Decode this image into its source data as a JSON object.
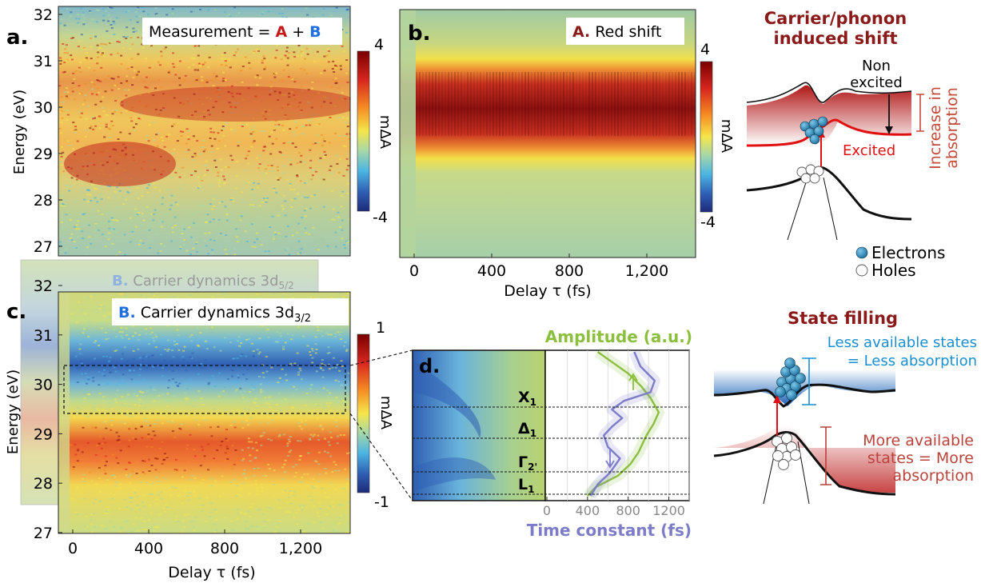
{
  "colors": {
    "measurement_a": "#c41a1a",
    "measurement_b": "#1f6fe0",
    "header_red": "#8b1a1a",
    "amplitude_green": "#8cbf3f",
    "time_constant_purple": "#7c7cc9",
    "less_blue": "#1a8fd0",
    "more_red": "#b9423a",
    "excited_red": "#e01010"
  },
  "panel_a": {
    "letter": "a.",
    "label_prefix": "Measurement = ",
    "label_a": "A",
    "label_plus": " + ",
    "label_b": "B",
    "ylabel": "Energy (eV)",
    "yticks": [
      "32",
      "31",
      "30",
      "29",
      "28",
      "27"
    ],
    "cbar_max": "4",
    "cbar_min": "-4",
    "cbar_label": "mΔA"
  },
  "panel_b": {
    "letter": "b.",
    "label_letter": "A.",
    "label_text": " Red shift",
    "xlabel": "Delay τ (fs)",
    "xticks": [
      "0",
      "400",
      "800",
      "1,200"
    ],
    "cbar_max": "4",
    "cbar_min": "-4",
    "cbar_label": "mΔA"
  },
  "panel_c": {
    "letter": "c.",
    "back_label_letter": "B.",
    "back_label_text": " Carrier dynamics 3d",
    "back_label_sub": "5/2",
    "label_letter": "B.",
    "label_text": " Carrier dynamics 3d",
    "label_sub": "3/2",
    "ylabel": "Energy (eV)",
    "yticks": [
      "32",
      "31",
      "30",
      "29",
      "28",
      "27"
    ],
    "xlabel": "Delay τ (fs)",
    "xticks": [
      "0",
      "400",
      "800",
      "1,200"
    ],
    "cbar_max": "1",
    "cbar_min": "-1",
    "cbar_label": "mΔA"
  },
  "panel_d": {
    "letter": "d.",
    "amplitude_label": "Amplitude (a.u.)",
    "time_constant_label": "Time constant (fs)",
    "xticks": [
      "0",
      "400",
      "800",
      "1200"
    ],
    "points": [
      {
        "main": "X",
        "sub": "1"
      },
      {
        "main": "Δ",
        "sub": "1"
      },
      {
        "main": "Γ",
        "sub": "2'"
      },
      {
        "main": "L",
        "sub": "1"
      }
    ]
  },
  "carrier_panel": {
    "title_line1": "Carrier/phonon",
    "title_line2": "induced shift",
    "non_line1": "Non",
    "non_line2": "excited",
    "excited": "Excited",
    "increase_line1": "Increase in",
    "increase_line2": "absorption"
  },
  "legend": {
    "electrons": "Electrons",
    "holes": "Holes"
  },
  "state_panel": {
    "title": "State filling",
    "less_line1": "Less available states",
    "less_line2": "= Less absorption",
    "more_line1": "More available",
    "more_line2": "states = More",
    "more_line3": "absorption"
  },
  "chart_data": [
    {
      "type": "heatmap",
      "panel": "a",
      "title": "Measurement = A + B",
      "ylabel": "Energy (eV)",
      "ylim": [
        27,
        32
      ],
      "colorbar": {
        "label": "mΔA",
        "range": [
          -4,
          4
        ]
      }
    },
    {
      "type": "heatmap",
      "panel": "b",
      "title": "A. Red shift",
      "xlabel": "Delay τ (fs)",
      "xticks": [
        0,
        400,
        800,
        1200
      ],
      "colorbar": {
        "label": "mΔA",
        "range": [
          -4,
          4
        ]
      }
    },
    {
      "type": "heatmap",
      "panel": "c",
      "title": "B. Carrier dynamics 3d3/2",
      "xlabel": "Delay τ (fs)",
      "ylabel": "Energy (eV)",
      "ylim": [
        27,
        32
      ],
      "xticks": [
        0,
        400,
        800,
        1200
      ],
      "colorbar": {
        "label": "mΔA",
        "range": [
          -1,
          1
        ]
      }
    },
    {
      "type": "line",
      "panel": "d",
      "xlabel": "Time constant (fs)",
      "xticks": [
        0,
        400,
        800,
        1200
      ],
      "points_of_interest": [
        "X1",
        "Δ1",
        "Γ2'",
        "L1"
      ],
      "series": [
        {
          "name": "Amplitude (a.u.)",
          "x": [
            400,
            480,
            700,
            820,
            900,
            980,
            1050,
            1100,
            1020,
            930,
            800,
            500
          ],
          "y": [
            0.0,
            0.06,
            0.14,
            0.22,
            0.3,
            0.42,
            0.5,
            0.58,
            0.68,
            0.76,
            0.85,
            1.0
          ]
        },
        {
          "name": "Time constant (fs)",
          "x": [
            430,
            500,
            620,
            720,
            600,
            560,
            640,
            740,
            640,
            760,
            1020,
            1060,
            920,
            860
          ],
          "y": [
            0.0,
            0.08,
            0.16,
            0.26,
            0.34,
            0.42,
            0.48,
            0.54,
            0.6,
            0.66,
            0.72,
            0.8,
            0.9,
            1.0
          ]
        }
      ]
    }
  ]
}
